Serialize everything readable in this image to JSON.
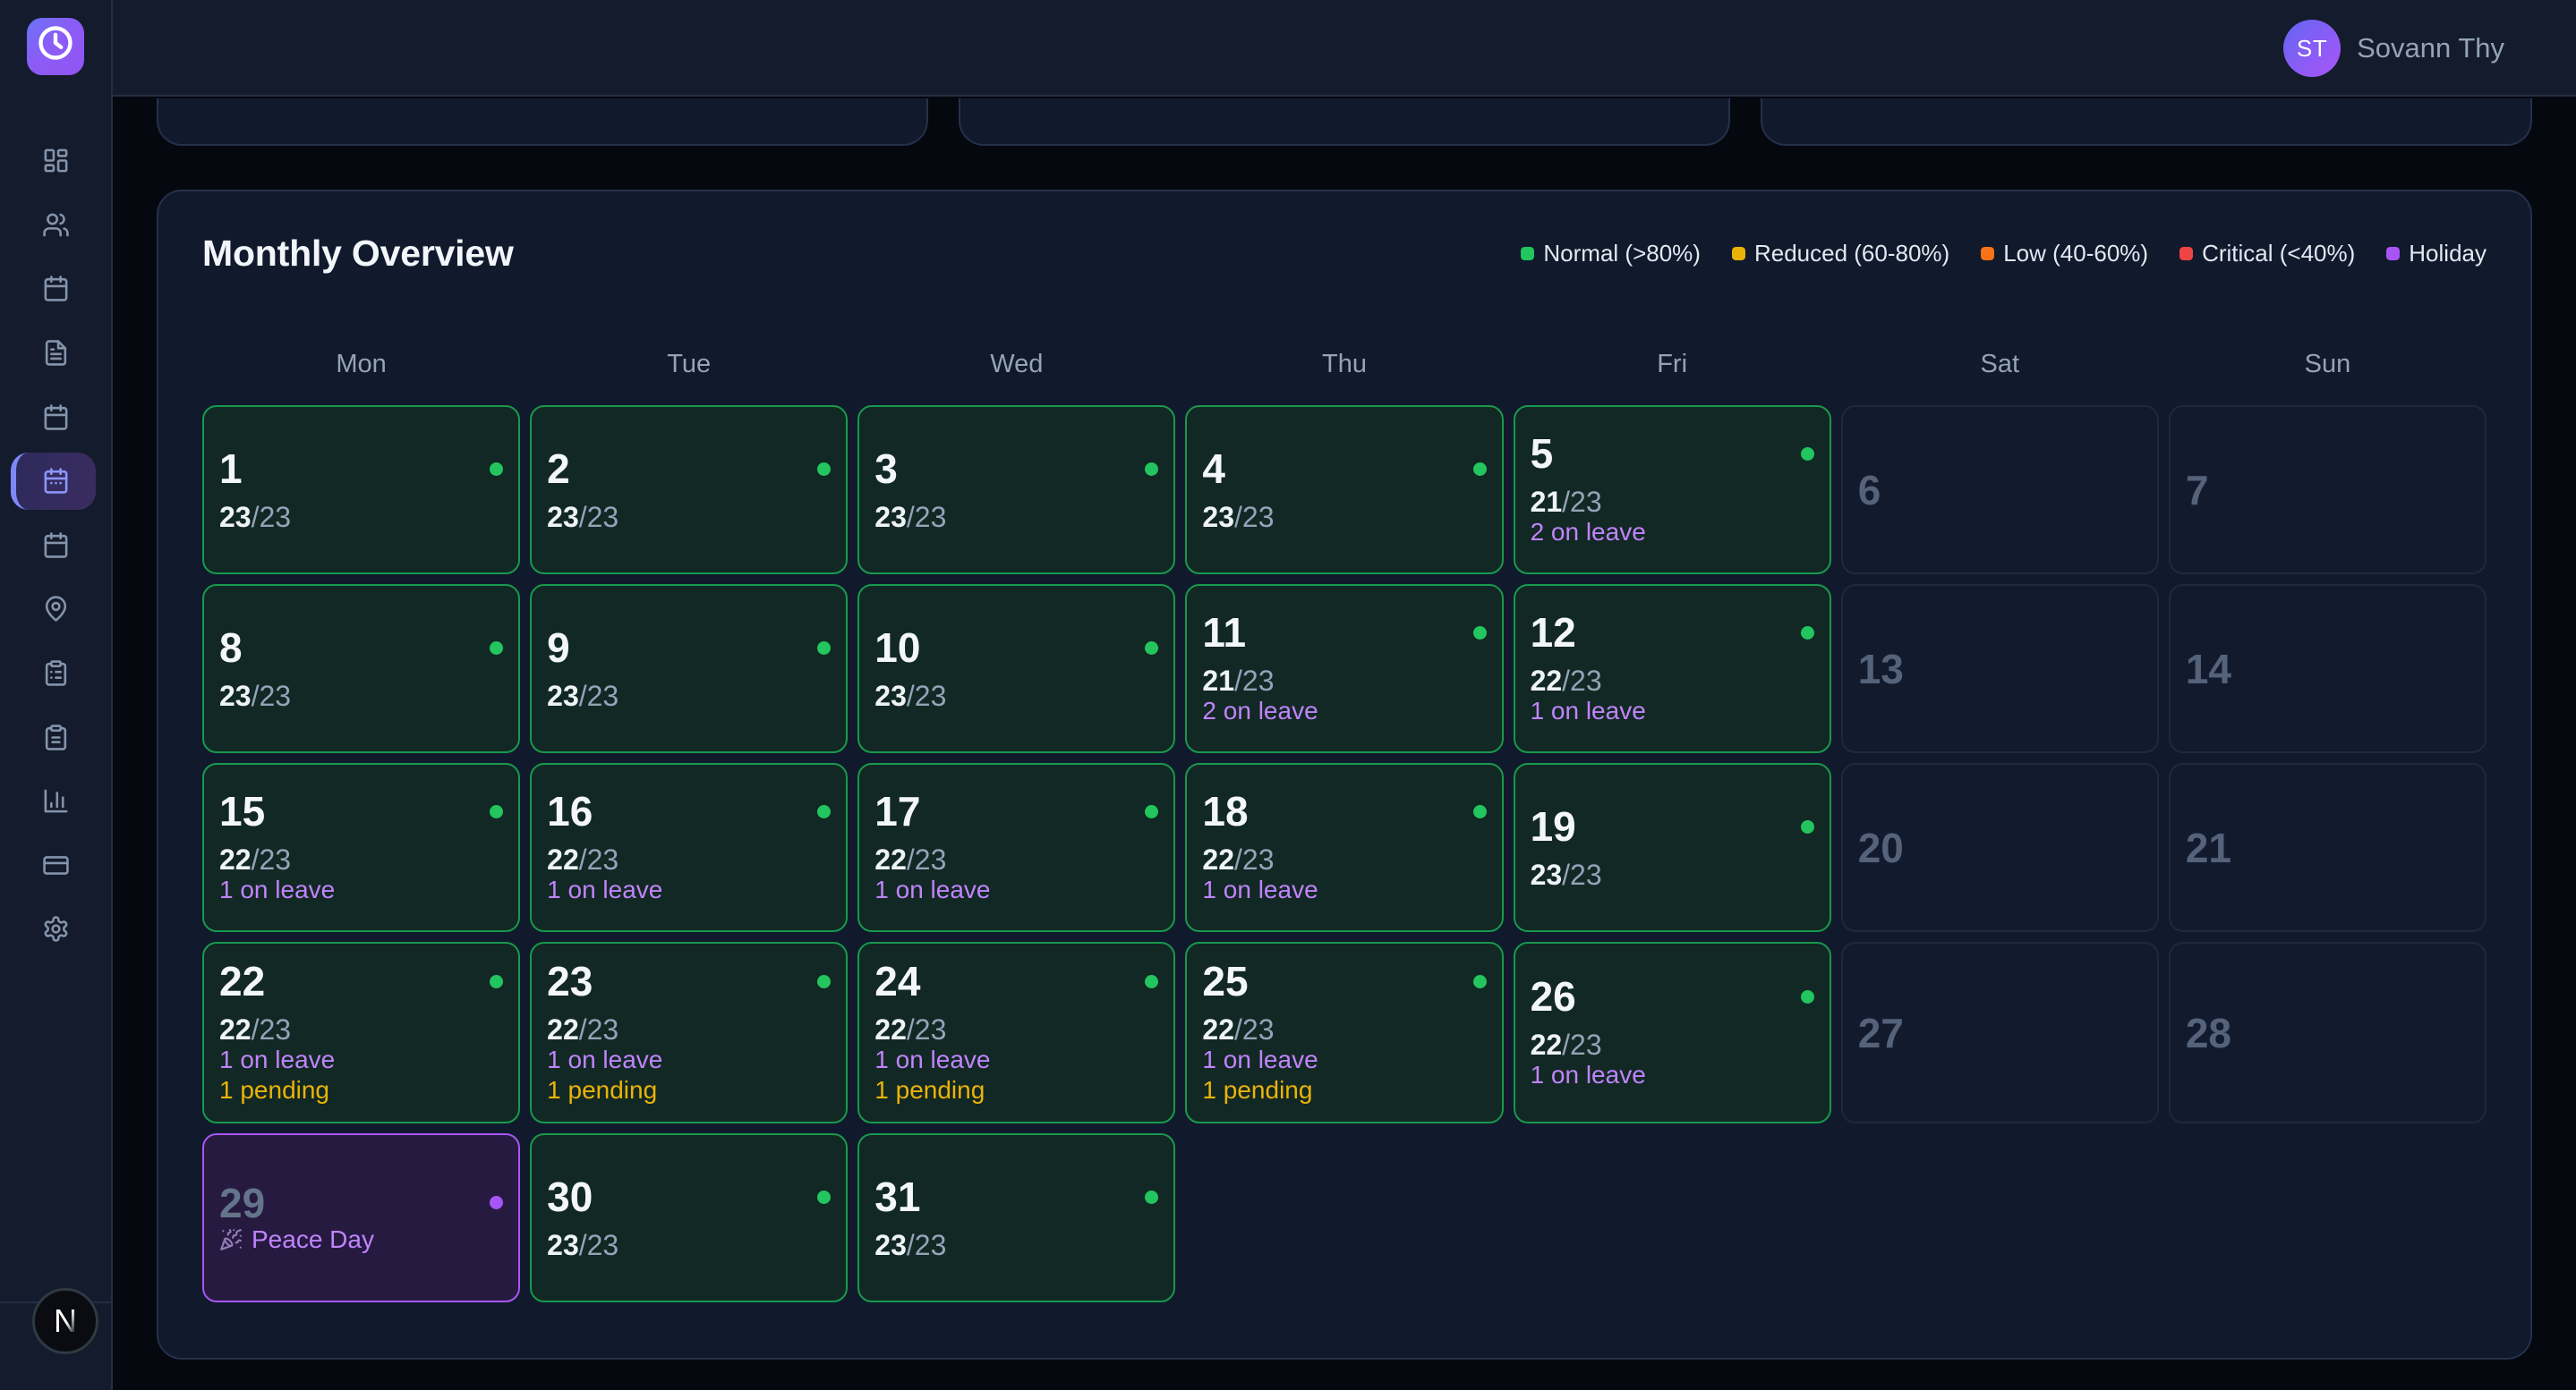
{
  "brand": {
    "logo_icon": "clock-icon"
  },
  "topbar": {
    "user_initials": "ST",
    "user_name": "Sovann Thy"
  },
  "sidebar": {
    "items": [
      {
        "icon": "dashboard-icon",
        "active": false
      },
      {
        "icon": "users-icon",
        "active": false
      },
      {
        "icon": "calendar-icon",
        "active": false
      },
      {
        "icon": "file-text-icon",
        "active": false
      },
      {
        "icon": "calendar-icon",
        "active": false
      },
      {
        "icon": "calendar-days-icon",
        "active": true
      },
      {
        "icon": "calendar-icon",
        "active": false
      },
      {
        "icon": "map-pin-icon",
        "active": false
      },
      {
        "icon": "clipboard-list-icon",
        "active": false
      },
      {
        "icon": "clipboard-icon",
        "active": false
      },
      {
        "icon": "bar-chart-icon",
        "active": false
      },
      {
        "icon": "credit-card-icon",
        "active": false
      },
      {
        "icon": "settings-icon",
        "active": false
      }
    ],
    "badge": "N"
  },
  "monthly": {
    "title": "Monthly Overview",
    "legend": [
      {
        "label": "Normal (>80%)",
        "color": "#22c55e"
      },
      {
        "label": "Reduced (60-80%)",
        "color": "#eab308"
      },
      {
        "label": "Low (40-60%)",
        "color": "#f97316"
      },
      {
        "label": "Critical (<40%)",
        "color": "#ef4444"
      },
      {
        "label": "Holiday",
        "color": "#a855f7"
      }
    ],
    "weekdays": [
      "Mon",
      "Tue",
      "Wed",
      "Thu",
      "Fri",
      "Sat",
      "Sun"
    ],
    "days": [
      {
        "date": 1,
        "type": "work",
        "present": 23,
        "total": 23,
        "dot": "#22c55e"
      },
      {
        "date": 2,
        "type": "work",
        "present": 23,
        "total": 23,
        "dot": "#22c55e"
      },
      {
        "date": 3,
        "type": "work",
        "present": 23,
        "total": 23,
        "dot": "#22c55e"
      },
      {
        "date": 4,
        "type": "work",
        "present": 23,
        "total": 23,
        "dot": "#22c55e"
      },
      {
        "date": 5,
        "type": "work",
        "present": 21,
        "total": 23,
        "on_leave": 2,
        "dot": "#22c55e"
      },
      {
        "date": 6,
        "type": "weekend"
      },
      {
        "date": 7,
        "type": "weekend"
      },
      {
        "date": 8,
        "type": "work",
        "present": 23,
        "total": 23,
        "dot": "#22c55e"
      },
      {
        "date": 9,
        "type": "work",
        "present": 23,
        "total": 23,
        "dot": "#22c55e"
      },
      {
        "date": 10,
        "type": "work",
        "present": 23,
        "total": 23,
        "dot": "#22c55e"
      },
      {
        "date": 11,
        "type": "work",
        "present": 21,
        "total": 23,
        "on_leave": 2,
        "dot": "#22c55e"
      },
      {
        "date": 12,
        "type": "work",
        "present": 22,
        "total": 23,
        "on_leave": 1,
        "dot": "#22c55e"
      },
      {
        "date": 13,
        "type": "weekend"
      },
      {
        "date": 14,
        "type": "weekend"
      },
      {
        "date": 15,
        "type": "work",
        "present": 22,
        "total": 23,
        "on_leave": 1,
        "dot": "#22c55e"
      },
      {
        "date": 16,
        "type": "work",
        "present": 22,
        "total": 23,
        "on_leave": 1,
        "dot": "#22c55e"
      },
      {
        "date": 17,
        "type": "work",
        "present": 22,
        "total": 23,
        "on_leave": 1,
        "dot": "#22c55e"
      },
      {
        "date": 18,
        "type": "work",
        "present": 22,
        "total": 23,
        "on_leave": 1,
        "dot": "#22c55e"
      },
      {
        "date": 19,
        "type": "work",
        "present": 23,
        "total": 23,
        "dot": "#22c55e"
      },
      {
        "date": 20,
        "type": "weekend"
      },
      {
        "date": 21,
        "type": "weekend"
      },
      {
        "date": 22,
        "type": "work",
        "present": 22,
        "total": 23,
        "on_leave": 1,
        "pending": 1,
        "dot": "#22c55e"
      },
      {
        "date": 23,
        "type": "work",
        "present": 22,
        "total": 23,
        "on_leave": 1,
        "pending": 1,
        "dot": "#22c55e"
      },
      {
        "date": 24,
        "type": "work",
        "present": 22,
        "total": 23,
        "on_leave": 1,
        "pending": 1,
        "dot": "#22c55e"
      },
      {
        "date": 25,
        "type": "work",
        "present": 22,
        "total": 23,
        "on_leave": 1,
        "pending": 1,
        "dot": "#22c55e"
      },
      {
        "date": 26,
        "type": "work",
        "present": 22,
        "total": 23,
        "on_leave": 1,
        "dot": "#22c55e"
      },
      {
        "date": 27,
        "type": "weekend"
      },
      {
        "date": 28,
        "type": "weekend"
      },
      {
        "date": 29,
        "type": "holiday",
        "holiday_emoji": "🎉",
        "holiday_name": "Peace Day",
        "dot": "#a855f7"
      },
      {
        "date": 30,
        "type": "work",
        "present": 23,
        "total": 23,
        "dot": "#22c55e"
      },
      {
        "date": 31,
        "type": "work",
        "present": 23,
        "total": 23,
        "dot": "#22c55e"
      }
    ],
    "on_leave_suffix": "on leave",
    "pending_suffix": "pending"
  }
}
